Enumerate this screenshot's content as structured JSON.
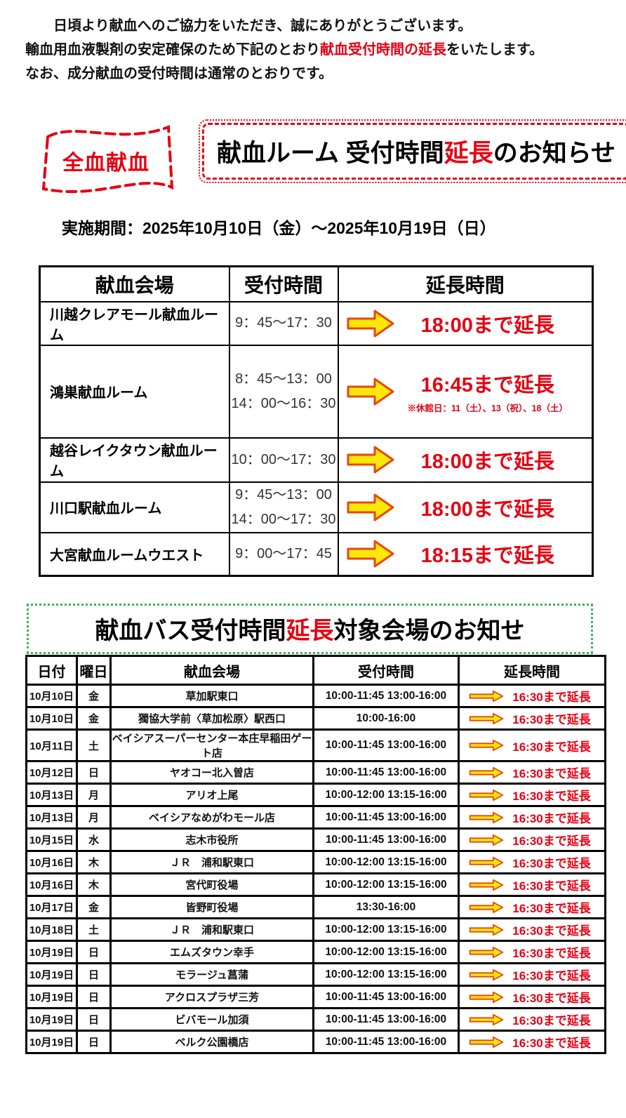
{
  "colors": {
    "red": "#e60012",
    "arrow-fill": "#ffe70a",
    "arrow-stroke": "#e8470f",
    "green": "#3fae5a"
  },
  "intro": {
    "line1": "日頃より献血へのご協力をいただき、誠にありがとうございます。",
    "line2_before": "輸血用血液製剤の安定確保のため下記のとおり",
    "line2_red": "献血受付時間の延長",
    "line2_after": "をいたします。",
    "line3": "なお、成分献血の受付時間は通常のとおりです。"
  },
  "badge": {
    "label": "全血献血"
  },
  "room_notice": {
    "title_before": "献血ルーム 受付時間",
    "title_red": "延長",
    "title_after": "のお知らせ",
    "period": "実施期間：2025年10月10日（金）～2025年10月19日（日）"
  },
  "room_table": {
    "headers": [
      "献血会場",
      "受付時間",
      "延長時間"
    ],
    "rows": [
      {
        "venue": "川越クレアモール献血ルーム",
        "times": [
          "9：45～17：30"
        ],
        "extension": "18:00まで延長",
        "note": ""
      },
      {
        "venue": "鴻巣献血ルーム",
        "times": [
          "8：45～13：00",
          "14：00～16：30"
        ],
        "extension": "16:45まで延長",
        "note": "※休館日：11（土）、13（祝）、18（土）"
      },
      {
        "venue": "越谷レイクタウン献血ルーム",
        "times": [
          "10：00～17：30"
        ],
        "extension": "18:00まで延長",
        "note": ""
      },
      {
        "venue": "川口駅献血ルーム",
        "times": [
          "9：45～13：00",
          "14：00～17：30"
        ],
        "extension": "18:00まで延長",
        "note": ""
      },
      {
        "venue": "大宮献血ルームウエスト",
        "times": [
          "9：00～17：45"
        ],
        "extension": "18:15まで延長",
        "note": ""
      }
    ]
  },
  "bus_notice": {
    "title_before": "献血バス受付時間",
    "title_red": "延長",
    "title_after": "対象会場のお知せ"
  },
  "bus_table": {
    "headers": [
      "日付",
      "曜日",
      "献血会場",
      "受付時間",
      "延長時間"
    ],
    "rows": [
      {
        "date": "10月10日",
        "day": "金",
        "venue": "草加駅東口",
        "time": "10:00-11:45 13:00-16:00",
        "extension": "16:30まで延長"
      },
      {
        "date": "10月10日",
        "day": "金",
        "venue": "獨協大学前〈草加松原〉駅西口",
        "time": "10:00-16:00",
        "extension": "16:30まで延長"
      },
      {
        "date": "10月11日",
        "day": "土",
        "venue": "ベイシアスーパーセンター本庄早稲田ゲート店",
        "time": "10:00-11:45 13:00-16:00",
        "extension": "16:30まで延長"
      },
      {
        "date": "10月12日",
        "day": "日",
        "venue": "ヤオコー北入曽店",
        "time": "10:00-11:45 13:00-16:00",
        "extension": "16:30まで延長"
      },
      {
        "date": "10月13日",
        "day": "月",
        "venue": "アリオ上尾",
        "time": "10:00-12:00 13:15-16:00",
        "extension": "16:30まで延長"
      },
      {
        "date": "10月13日",
        "day": "月",
        "venue": "ベイシアなめがわモール店",
        "time": "10:00-11:45 13:00-16:00",
        "extension": "16:30まで延長"
      },
      {
        "date": "10月15日",
        "day": "水",
        "venue": "志木市役所",
        "time": "10:00-11:45 13:00-16:00",
        "extension": "16:30まで延長"
      },
      {
        "date": "10月16日",
        "day": "木",
        "venue": "ＪＲ　浦和駅東口",
        "time": "10:00-12:00 13:15-16:00",
        "extension": "16:30まで延長"
      },
      {
        "date": "10月16日",
        "day": "木",
        "venue": "宮代町役場",
        "time": "10:00-12:00 13:15-16:00",
        "extension": "16:30まで延長"
      },
      {
        "date": "10月17日",
        "day": "金",
        "venue": "皆野町役場",
        "time": "13:30-16:00",
        "extension": "16:30まで延長"
      },
      {
        "date": "10月18日",
        "day": "土",
        "venue": "ＪＲ　浦和駅東口",
        "time": "10:00-12:00 13:15-16:00",
        "extension": "16:30まで延長"
      },
      {
        "date": "10月19日",
        "day": "日",
        "venue": "エムズタウン幸手",
        "time": "10:00-12:00 13:15-16:00",
        "extension": "16:30まで延長"
      },
      {
        "date": "10月19日",
        "day": "日",
        "venue": "モラージュ菖蒲",
        "time": "10:00-12:00 13:15-16:00",
        "extension": "16:30まで延長"
      },
      {
        "date": "10月19日",
        "day": "日",
        "venue": "アクロスプラザ三芳",
        "time": "10:00-11:45 13:00-16:00",
        "extension": "16:30まで延長"
      },
      {
        "date": "10月19日",
        "day": "日",
        "venue": "ビバモール加須",
        "time": "10:00-11:45 13:00-16:00",
        "extension": "16:30まで延長"
      },
      {
        "date": "10月19日",
        "day": "日",
        "venue": "ベルク公園橋店",
        "time": "10:00-11:45 13:00-16:00",
        "extension": "16:30まで延長"
      }
    ]
  }
}
